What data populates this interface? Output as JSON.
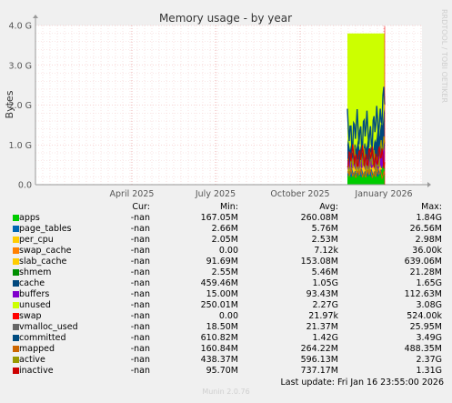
{
  "chart_data": {
    "type": "area",
    "title": "Memory usage - by year",
    "ylabel": "Bytes",
    "ylim": [
      0,
      4000000000
    ],
    "yticks": [
      "0.0",
      "1.0 G",
      "2.0 G",
      "3.0 G",
      "4.0 G"
    ],
    "xticks": [
      "April 2025",
      "July 2025",
      "October 2025",
      "January 2026"
    ],
    "grid": true,
    "series": [
      {
        "name": "apps",
        "color": "#00cc00",
        "cur": "-nan",
        "min": "167.05M",
        "avg": "260.08M",
        "max": "1.84G"
      },
      {
        "name": "page_tables",
        "color": "#0066b3",
        "cur": "-nan",
        "min": "2.66M",
        "avg": "5.76M",
        "max": "26.56M"
      },
      {
        "name": "per_cpu",
        "color": "#ffcc00",
        "cur": "-nan",
        "min": "2.05M",
        "avg": "2.53M",
        "max": "2.98M"
      },
      {
        "name": "swap_cache",
        "color": "#ff8000",
        "cur": "-nan",
        "min": "0.00",
        "avg": "7.12k",
        "max": "36.00k"
      },
      {
        "name": "slab_cache",
        "color": "#ffcc00",
        "cur": "-nan",
        "min": "91.69M",
        "avg": "153.08M",
        "max": "639.06M"
      },
      {
        "name": "shmem",
        "color": "#008f00",
        "cur": "-nan",
        "min": "2.55M",
        "avg": "5.46M",
        "max": "21.28M"
      },
      {
        "name": "cache",
        "color": "#00487d",
        "cur": "-nan",
        "min": "459.46M",
        "avg": "1.05G",
        "max": "1.65G"
      },
      {
        "name": "buffers",
        "color": "#8000cc",
        "cur": "-nan",
        "min": "15.00M",
        "avg": "93.43M",
        "max": "112.63M"
      },
      {
        "name": "unused",
        "color": "#ccff00",
        "cur": "-nan",
        "min": "250.01M",
        "avg": "2.27G",
        "max": "3.08G"
      },
      {
        "name": "swap",
        "color": "#ff0000",
        "cur": "-nan",
        "min": "0.00",
        "avg": "21.97k",
        "max": "524.00k"
      },
      {
        "name": "vmalloc_used",
        "color": "#666666",
        "cur": "-nan",
        "min": "18.50M",
        "avg": "21.37M",
        "max": "25.95M"
      },
      {
        "name": "committed",
        "color": "#004c80",
        "cur": "-nan",
        "min": "610.82M",
        "avg": "1.42G",
        "max": "3.49G"
      },
      {
        "name": "mapped",
        "color": "#cc6600",
        "cur": "-nan",
        "min": "160.84M",
        "avg": "264.22M",
        "max": "488.35M"
      },
      {
        "name": "active",
        "color": "#999900",
        "cur": "-nan",
        "min": "438.37M",
        "avg": "596.13M",
        "max": "2.37G"
      },
      {
        "name": "inactive",
        "color": "#cc0000",
        "cur": "-nan",
        "min": "95.70M",
        "avg": "737.17M",
        "max": "1.31G"
      }
    ]
  },
  "legend_header": {
    "cur": "Cur:",
    "min": "Min:",
    "avg": "Avg:",
    "max": "Max:"
  },
  "last_update": "Last update: Fri Jan 16 23:55:00 2026",
  "footer": "Munin 2.0.76",
  "side_label": "RRDTOOL / TOBI OETIKER"
}
